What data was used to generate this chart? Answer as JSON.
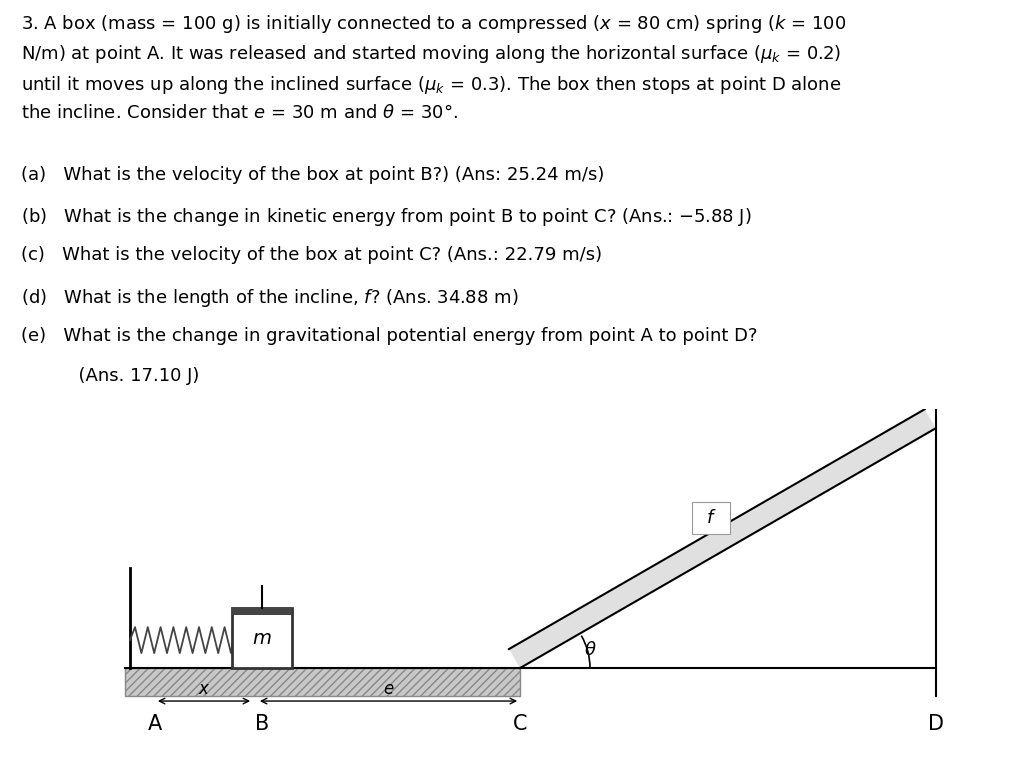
{
  "bg_color": "#ffffff",
  "problem_line1": "3. A box (mass = 100 g) is initially connected to a compressed (",
  "problem_line2": "N/m) at point A. It was released and started moving along the horizontal surface (",
  "problem_line3": "until it moves up along the inclined surface (",
  "problem_line4": "the incline. Consider that ",
  "questions": [
    [
      "(a)",
      "What is the velocity of the box at point B?) (Ans: 25.24 m/s)"
    ],
    [
      "(b)",
      "What is the change in kinetic energy from point B to point C? (Ans.: –5.88 J)"
    ],
    [
      "(c)",
      "What is the velocity of the box at point C? (Ans.: 22.79 m/s)"
    ],
    [
      "(d)",
      "What is the length of the incline, "
    ],
    [
      "(e)",
      "What is the change in gravitational potential energy from point A to point D?"
    ]
  ],
  "ans_d": "? (Ans. 34.88 m)",
  "ans_e": "(Ans. 17.10 J)",
  "ground_color": "#c8c8c8",
  "ground_hatch": "//",
  "ramp_fill": "#e8e8e8",
  "text_color": "#000000",
  "fontsize": 13,
  "diagram_fontsize": 13
}
